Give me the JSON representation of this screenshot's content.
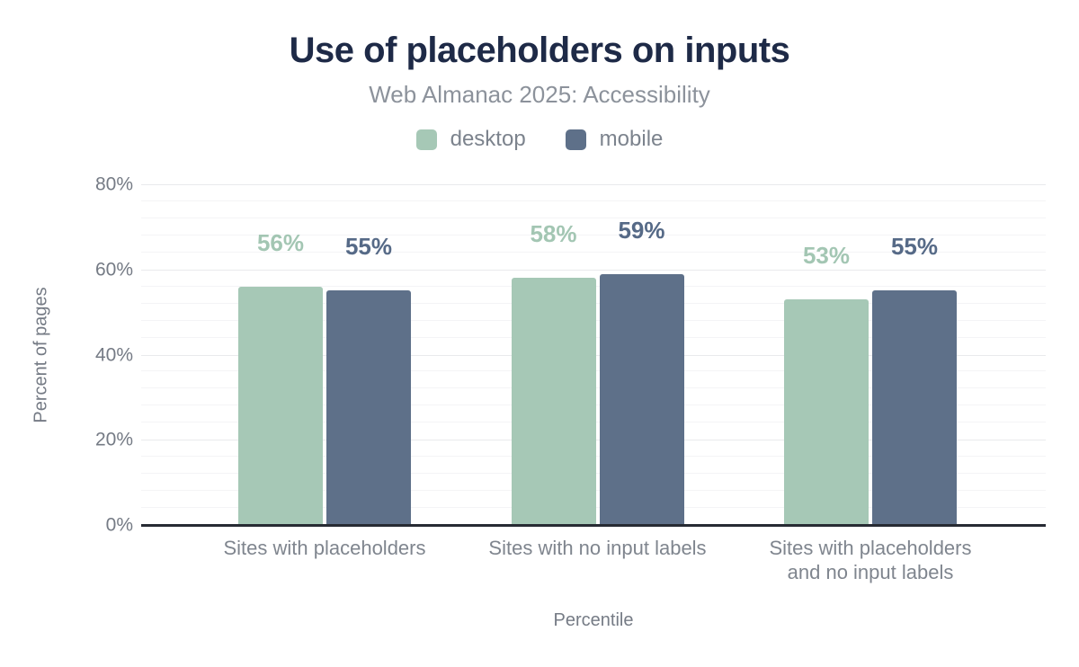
{
  "chart_data": {
    "type": "bar",
    "title": "Use of placeholders on inputs",
    "subtitle": "Web Almanac 2025: Accessibility",
    "xlabel": "Percentile",
    "ylabel": "Percent of pages",
    "categories": [
      "Sites with placeholders",
      "Sites with no input labels",
      "Sites with placeholders and no input labels"
    ],
    "category_lines": [
      [
        "Sites with placeholders"
      ],
      [
        "Sites with no input labels"
      ],
      [
        "Sites with placeholders",
        "and no input labels"
      ]
    ],
    "series": [
      {
        "name": "desktop",
        "color": "#a6c8b6",
        "label_color": "#a3c6b3",
        "values": [
          56,
          58,
          53
        ],
        "value_labels": [
          "56%",
          "58%",
          "53%"
        ]
      },
      {
        "name": "mobile",
        "color": "#5e7089",
        "label_color": "#566a87",
        "values": [
          55,
          59,
          55
        ],
        "value_labels": [
          "55%",
          "59%",
          "55%"
        ]
      }
    ],
    "ylim": [
      0,
      80
    ],
    "yticks": [
      {
        "value": 0,
        "label": "0%"
      },
      {
        "value": 20,
        "label": "20%"
      },
      {
        "value": 40,
        "label": "40%"
      },
      {
        "value": 60,
        "label": "60%"
      },
      {
        "value": 80,
        "label": "80%"
      }
    ],
    "grid": {
      "show": true,
      "major_step": 20,
      "minor_step": 4,
      "major_color": "#e9eaec",
      "minor_color": "#f4f4f6"
    },
    "legend_position": "top",
    "axis_line_color": "#272b33",
    "title_color": "#1e2a47",
    "subtitle_color": "#8c929b",
    "axis_text_color": "#757b85"
  }
}
